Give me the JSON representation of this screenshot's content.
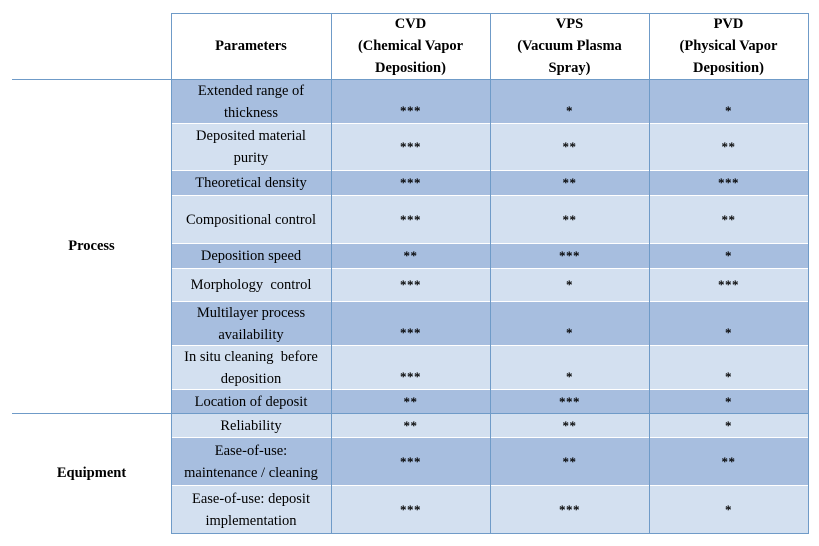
{
  "header": {
    "parameters": "Parameters",
    "cvd": [
      "CVD",
      "(Chemical Vapor",
      "Deposition)"
    ],
    "vps": [
      "VPS",
      "(Vacuum Plasma",
      "Spray)"
    ],
    "pvd": [
      "PVD",
      "(Physical Vapor",
      "Deposition)"
    ]
  },
  "groups": {
    "process": "Process",
    "equipment": "Equipment"
  },
  "rows": [
    {
      "param": [
        "Extended range of",
        "thickness"
      ],
      "cvd": "***",
      "vps": "*",
      "pvd": "*"
    },
    {
      "param": [
        "Deposited material",
        "purity"
      ],
      "cvd": "***",
      "vps": "**",
      "pvd": "**"
    },
    {
      "param": [
        "Theoretical density"
      ],
      "cvd": "***",
      "vps": "**",
      "pvd": "***"
    },
    {
      "param": [
        "Compositional control"
      ],
      "cvd": "***",
      "vps": "**",
      "pvd": "**"
    },
    {
      "param": [
        "Deposition speed"
      ],
      "cvd": "**",
      "vps": "***",
      "pvd": "*"
    },
    {
      "param": [
        "Morphology  control"
      ],
      "cvd": "***",
      "vps": "*",
      "pvd": "***"
    },
    {
      "param": [
        "Multilayer process",
        "availability"
      ],
      "cvd": "***",
      "vps": "*",
      "pvd": "*"
    },
    {
      "param": [
        "In situ cleaning  before",
        "deposition"
      ],
      "cvd": "***",
      "vps": "*",
      "pvd": "*"
    },
    {
      "param": [
        "Location of deposit"
      ],
      "cvd": "**",
      "vps": "***",
      "pvd": "*"
    },
    {
      "param": [
        "Reliability"
      ],
      "cvd": "**",
      "vps": "**",
      "pvd": "*"
    },
    {
      "param": [
        "Ease-of-use:",
        "maintenance / cleaning"
      ],
      "cvd": "***",
      "vps": "**",
      "pvd": "**"
    },
    {
      "param": [
        "Ease-of-use: deposit",
        "implementation"
      ],
      "cvd": "***",
      "vps": "***",
      "pvd": "*"
    }
  ]
}
